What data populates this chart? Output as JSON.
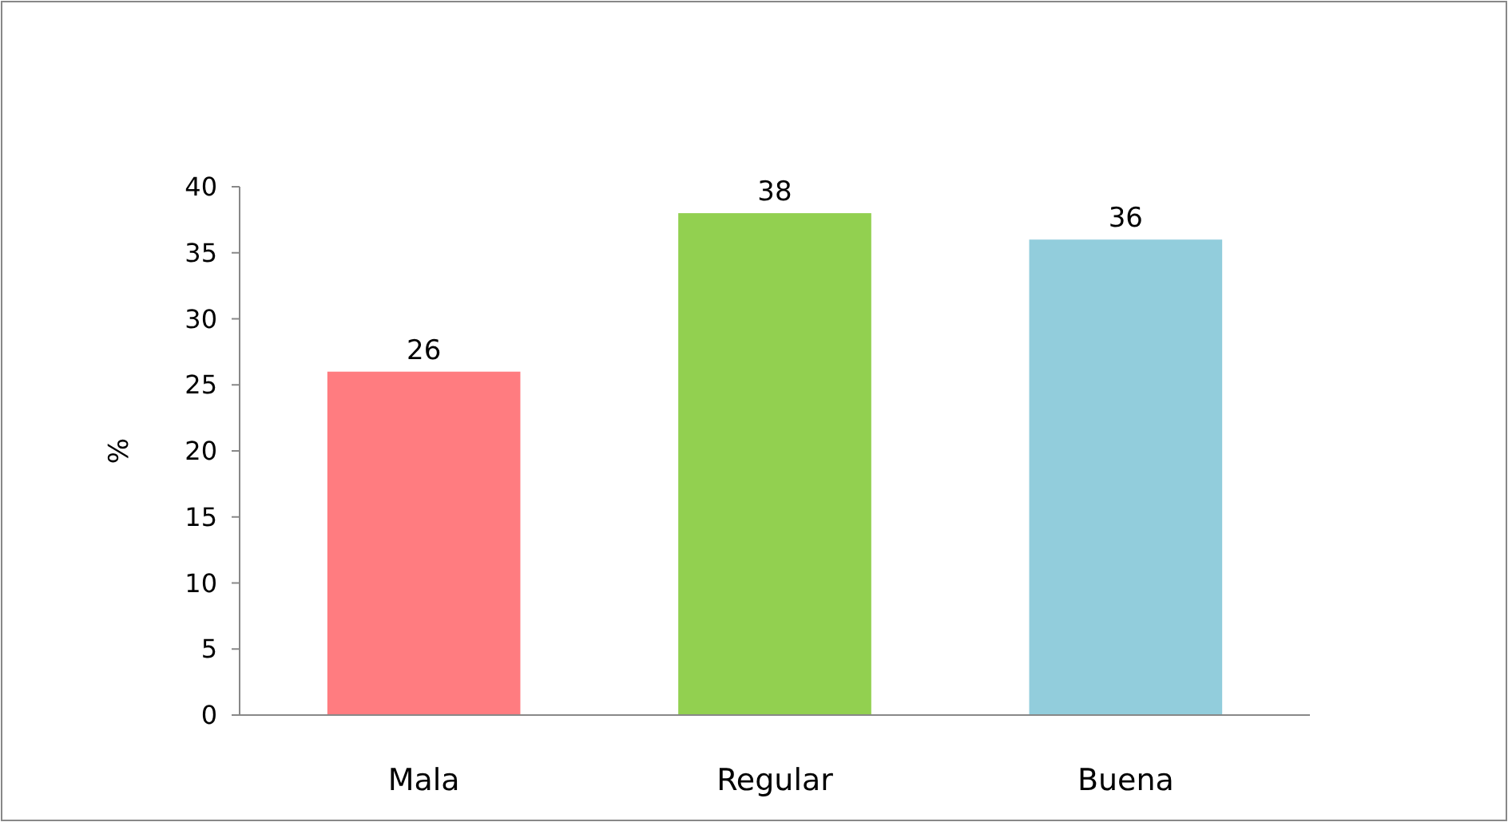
{
  "chart_data": {
    "type": "bar",
    "ylabel": "%",
    "categories": [
      "Mala",
      "Regular",
      "Buena"
    ],
    "values": [
      26,
      38,
      36
    ],
    "colors": [
      "#ff7c80",
      "#92d050",
      "#92cddc"
    ],
    "ylim": [
      0,
      40
    ],
    "yticks": [
      0,
      5,
      10,
      15,
      20,
      25,
      30,
      35,
      40
    ],
    "data_labels": true,
    "grid": false
  }
}
